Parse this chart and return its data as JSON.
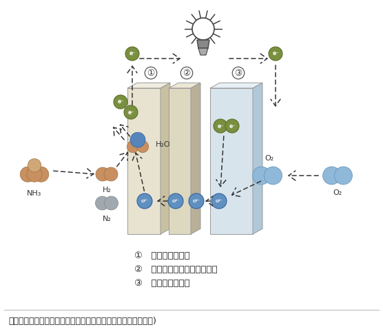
{
  "title": "図５　アンモニアを直接燃料とした固体酸化物形燃料電池　６)",
  "fig_width": 5.56,
  "fig_height": 4.88,
  "dpi": 100,
  "bg_color": "#ffffff",
  "panel1_color": "#e8e3d0",
  "panel1_top": "#f0ece0",
  "panel1_side": "#c8c0a0",
  "panel2_color": "#ddd8c0",
  "panel3_color": "#d8e4ec",
  "panel3_top": "#e8f0f5",
  "panel3_side": "#b0c8d8",
  "electron_color": "#7a9040",
  "electron_dark": "#5a6e28",
  "o_ion_color": "#6090c0",
  "o_ion_dark": "#3060a0",
  "nh3_color": "#c89060",
  "n2_color": "#a0a8b0",
  "o2_color": "#90b8d8",
  "arrow_color": "#333333",
  "legend": [
    "①   燃料極（負極）",
    "②   セラミックス膜（電解質）",
    "③   空気極（正極）"
  ]
}
